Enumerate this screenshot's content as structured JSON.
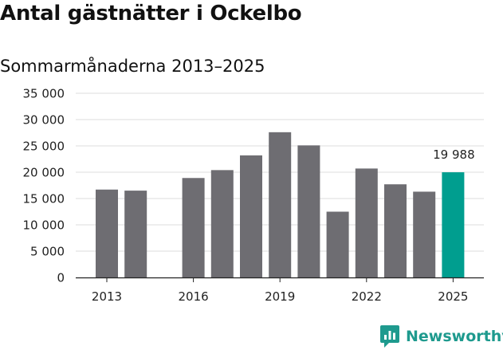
{
  "title": "Antal gästnätter i Ockelbo",
  "subtitle": "Sommarmånaderna 2013–2025",
  "chart_data": {
    "type": "bar",
    "title": "Antal gästnätter i Ockelbo",
    "subtitle": "Sommarmånaderna 2013–2025",
    "xlabel": "",
    "ylabel": "",
    "categories": [
      2013,
      2014,
      2015,
      2016,
      2017,
      2018,
      2019,
      2020,
      2021,
      2022,
      2023,
      2024,
      2025
    ],
    "values": [
      16700,
      16500,
      null,
      18900,
      20400,
      23200,
      27600,
      25100,
      12500,
      20700,
      17700,
      16300,
      19988
    ],
    "x_tick_labels": [
      "2013",
      "2016",
      "2019",
      "2022",
      "2025"
    ],
    "y_tick_labels": [
      "0",
      "5 000",
      "10 000",
      "15 000",
      "20 000",
      "25 000",
      "30 000",
      "35 000"
    ],
    "ylim": [
      0,
      35000
    ],
    "grid": true,
    "legend": "none",
    "bar_color": "#6e6d72",
    "highlight_color": "#009e8f",
    "highlight_category": 2025,
    "annotations": [
      {
        "category": 2025,
        "text": "19 988"
      }
    ]
  },
  "logo": {
    "text": "Newsworthy",
    "icon": "newsworthy-logo-icon",
    "color": "#1e9a8e"
  }
}
